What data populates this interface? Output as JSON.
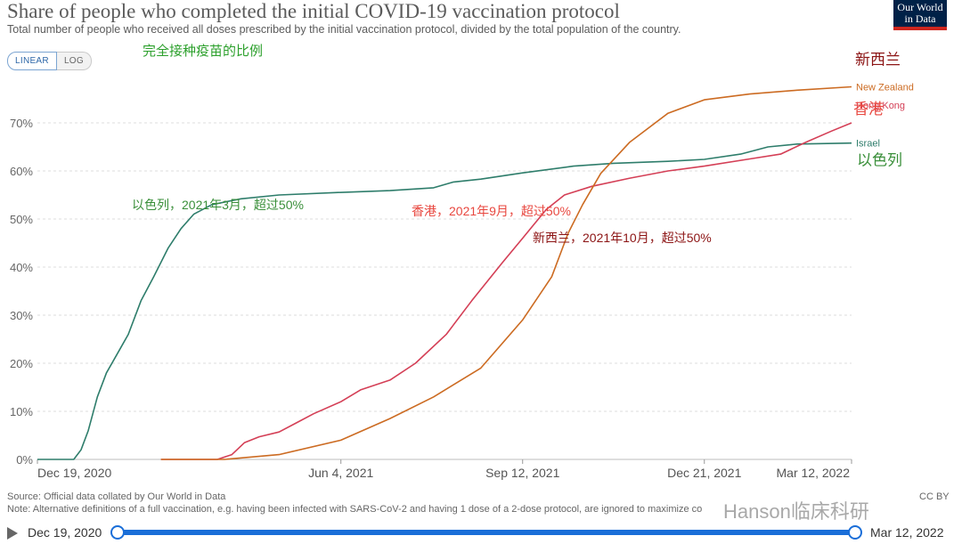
{
  "header": {
    "title": "Share of people who completed the initial COVID-19 vaccination protocol",
    "subtitle": "Total number of people who received all doses prescribed by the initial vaccination protocol, divided by the total population of the country.",
    "logo_line1": "Our World",
    "logo_line2": "in Data",
    "cn_subtitle": "完全接种疫苗的比例"
  },
  "controls": {
    "linear_label": "LINEAR",
    "log_label": "LOG",
    "selected": "LINEAR"
  },
  "footer": {
    "source": "Source: Official data collated by Our World in Data",
    "note": "Note: Alternative definitions of a full vaccination, e.g. having been infected with SARS-CoV-2 and having 1 dose of a 2-dose protocol, are ignored to maximize co",
    "license": "CC BY",
    "watermark": "Hanson临床科研"
  },
  "timeline": {
    "start_label": "Dec 19, 2020",
    "end_label": "Mar 12, 2022",
    "start_fraction": 0,
    "end_fraction": 1
  },
  "chart_data": {
    "type": "line",
    "title": "Share of people who completed the initial COVID-19 vaccination protocol",
    "xlabel": "",
    "ylabel": "",
    "y_unit": "%",
    "x_range": [
      "2020-12-19",
      "2022-03-12"
    ],
    "ylim": [
      0,
      80
    ],
    "y_ticks": [
      0,
      10,
      20,
      30,
      40,
      50,
      60,
      70
    ],
    "y_tick_labels": [
      "0%",
      "10%",
      "20%",
      "30%",
      "40%",
      "50%",
      "60%",
      "70%"
    ],
    "x_ticks": [
      "2020-12-19",
      "2021-06-04",
      "2021-09-12",
      "2021-12-21",
      "2022-03-12"
    ],
    "x_tick_labels": [
      "Dec 19, 2020",
      "Jun 4, 2021",
      "Sep 12, 2021",
      "Dec 21, 2021",
      "Mar 12, 2022"
    ],
    "grid": "horizontal dashed",
    "legend": "inline labels at right end of lines",
    "series": [
      {
        "name": "Israel",
        "name_cn": "以色列",
        "color": "#2e7d6b",
        "cn_color": "#3a8f3a",
        "points": [
          [
            "2020-12-19",
            0
          ],
          [
            "2021-01-08",
            0
          ],
          [
            "2021-01-12",
            2
          ],
          [
            "2021-01-16",
            6
          ],
          [
            "2021-01-21",
            13
          ],
          [
            "2021-01-26",
            18
          ],
          [
            "2021-02-01",
            22
          ],
          [
            "2021-02-07",
            26
          ],
          [
            "2021-02-14",
            33
          ],
          [
            "2021-02-21",
            38
          ],
          [
            "2021-03-01",
            44
          ],
          [
            "2021-03-08",
            48
          ],
          [
            "2021-03-15",
            51
          ],
          [
            "2021-03-25",
            53
          ],
          [
            "2021-04-10",
            54.2
          ],
          [
            "2021-05-01",
            55
          ],
          [
            "2021-06-01",
            55.5
          ],
          [
            "2021-07-01",
            55.9
          ],
          [
            "2021-07-25",
            56.5
          ],
          [
            "2021-08-05",
            57.7
          ],
          [
            "2021-08-20",
            58.3
          ],
          [
            "2021-09-12",
            59.6
          ],
          [
            "2021-10-10",
            61
          ],
          [
            "2021-11-01",
            61.6
          ],
          [
            "2021-12-01",
            62
          ],
          [
            "2021-12-21",
            62.4
          ],
          [
            "2022-01-10",
            63.5
          ],
          [
            "2022-01-25",
            65
          ],
          [
            "2022-02-10",
            65.6
          ],
          [
            "2022-03-12",
            65.8
          ]
        ]
      },
      {
        "name": "Hong Kong",
        "name_cn": "香港",
        "color": "#d43f56",
        "cn_color": "#e8473f",
        "points": [
          [
            "2021-02-25",
            0
          ],
          [
            "2021-03-28",
            0
          ],
          [
            "2021-04-05",
            1
          ],
          [
            "2021-04-12",
            3.5
          ],
          [
            "2021-04-20",
            4.7
          ],
          [
            "2021-05-01",
            5.7
          ],
          [
            "2021-05-10",
            7.5
          ],
          [
            "2021-05-20",
            9.5
          ],
          [
            "2021-06-04",
            12
          ],
          [
            "2021-06-15",
            14.5
          ],
          [
            "2021-07-01",
            16.5
          ],
          [
            "2021-07-15",
            20
          ],
          [
            "2021-08-01",
            26
          ],
          [
            "2021-08-15",
            33
          ],
          [
            "2021-09-01",
            41
          ],
          [
            "2021-09-12",
            46
          ],
          [
            "2021-09-25",
            52
          ],
          [
            "2021-10-05",
            55
          ],
          [
            "2021-10-20",
            56.8
          ],
          [
            "2021-11-10",
            58.5
          ],
          [
            "2021-12-01",
            60
          ],
          [
            "2021-12-21",
            61
          ],
          [
            "2022-01-15",
            62.5
          ],
          [
            "2022-02-01",
            63.5
          ],
          [
            "2022-02-15",
            66
          ],
          [
            "2022-03-01",
            68.3
          ],
          [
            "2022-03-12",
            70
          ]
        ]
      },
      {
        "name": "New Zealand",
        "name_cn": "新西兰",
        "color": "#cc6b22",
        "cn_color": "#8c1414",
        "points": [
          [
            "2021-02-25",
            0
          ],
          [
            "2021-04-01",
            0
          ],
          [
            "2021-05-01",
            1
          ],
          [
            "2021-06-04",
            4
          ],
          [
            "2021-07-01",
            8.5
          ],
          [
            "2021-07-25",
            13
          ],
          [
            "2021-08-20",
            19
          ],
          [
            "2021-09-12",
            29
          ],
          [
            "2021-09-28",
            38
          ],
          [
            "2021-10-07",
            47
          ],
          [
            "2021-10-15",
            53
          ],
          [
            "2021-10-25",
            59.5
          ],
          [
            "2021-11-10",
            66
          ],
          [
            "2021-12-01",
            72
          ],
          [
            "2021-12-21",
            74.8
          ],
          [
            "2022-01-15",
            76
          ],
          [
            "2022-02-10",
            76.8
          ],
          [
            "2022-03-12",
            77.5
          ]
        ]
      }
    ],
    "annotations": [
      {
        "text": "以色列，2021年3月，超过50%",
        "series": "Israel",
        "color": "#3a8f3a"
      },
      {
        "text": "香港，2021年9月，超过50%",
        "series": "Hong Kong",
        "color": "#e8473f"
      },
      {
        "text": "新西兰，2021年10月，超过50%",
        "series": "New Zealand",
        "color": "#8c1414"
      }
    ]
  }
}
